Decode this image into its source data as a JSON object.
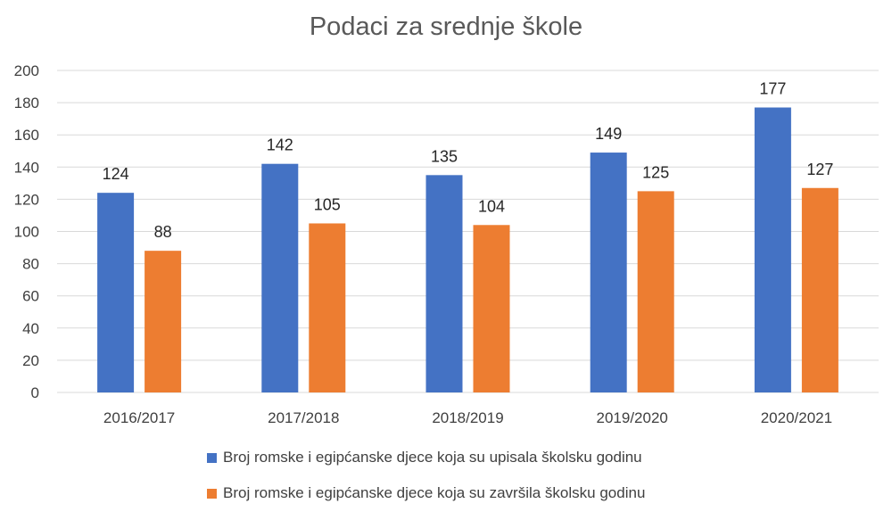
{
  "chart_data": {
    "type": "bar",
    "title": "Podaci za srednje škole",
    "categories": [
      "2016/2017",
      "2017/2018",
      "2018/2019",
      "2019/2020",
      "2020/2021"
    ],
    "series": [
      {
        "name": "Broj romske i egipćanske djece koja su upisala školsku godinu",
        "color": "#4472C4",
        "values": [
          124,
          142,
          135,
          149,
          177
        ]
      },
      {
        "name": "Broj romske i egipćanske djece koja su završila školsku godinu",
        "color": "#ED7D31",
        "values": [
          88,
          105,
          104,
          125,
          127
        ]
      }
    ],
    "ylim": [
      0,
      200
    ],
    "yticks": [
      0,
      20,
      40,
      60,
      80,
      100,
      120,
      140,
      160,
      180,
      200
    ],
    "grid": true,
    "legend_position": "bottom"
  }
}
